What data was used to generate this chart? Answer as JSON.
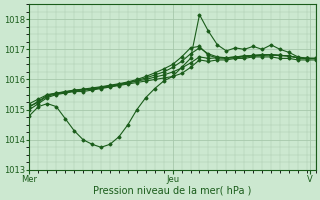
{
  "xlabel": "Pression niveau de la mer( hPa )",
  "ylim": [
    1013,
    1018.5
  ],
  "yticks": [
    1013,
    1014,
    1015,
    1016,
    1017,
    1018
  ],
  "background_color": "#cce8d0",
  "grid_color": "#a8c8ac",
  "line_color": "#1a5c1a",
  "day_labels": [
    "Mer",
    "Jeu",
    "V"
  ],
  "day_positions": [
    0,
    48,
    94
  ],
  "xlim": [
    0,
    96
  ],
  "lines": [
    {
      "x": [
        0,
        3,
        6,
        9,
        12,
        15,
        18,
        21,
        24,
        27,
        30,
        33,
        36,
        39,
        42,
        45,
        48,
        51,
        54,
        57,
        60,
        63,
        66,
        69,
        72,
        75,
        78,
        81,
        84,
        87,
        90,
        93,
        96
      ],
      "y": [
        1014.8,
        1015.1,
        1015.2,
        1015.1,
        1014.7,
        1014.3,
        1014.0,
        1013.85,
        1013.75,
        1013.85,
        1014.1,
        1014.5,
        1015.0,
        1015.4,
        1015.7,
        1015.95,
        1016.1,
        1016.4,
        1016.7,
        1018.15,
        1017.6,
        1017.15,
        1016.95,
        1017.05,
        1017.0,
        1017.1,
        1017.0,
        1017.15,
        1017.0,
        1016.9,
        1016.75,
        1016.7,
        1016.7
      ]
    },
    {
      "x": [
        0,
        3,
        6,
        9,
        12,
        15,
        18,
        21,
        24,
        27,
        30,
        33,
        36,
        39,
        42,
        45,
        48,
        51,
        54,
        57,
        60,
        63,
        66,
        69,
        72,
        75,
        78,
        81,
        84,
        87,
        90,
        93,
        96
      ],
      "y": [
        1015.0,
        1015.2,
        1015.4,
        1015.5,
        1015.55,
        1015.6,
        1015.6,
        1015.65,
        1015.7,
        1015.75,
        1015.8,
        1015.85,
        1015.9,
        1015.95,
        1016.0,
        1016.05,
        1016.1,
        1016.2,
        1016.4,
        1016.65,
        1016.6,
        1016.65,
        1016.65,
        1016.7,
        1016.7,
        1016.75,
        1016.75,
        1016.75,
        1016.7,
        1016.7,
        1016.65,
        1016.65,
        1016.65
      ]
    },
    {
      "x": [
        0,
        3,
        6,
        9,
        12,
        15,
        18,
        21,
        24,
        27,
        30,
        33,
        36,
        39,
        42,
        45,
        48,
        51,
        54,
        57,
        60,
        63,
        66,
        69,
        72,
        75,
        78,
        81,
        84,
        87,
        90,
        93,
        96
      ],
      "y": [
        1015.1,
        1015.25,
        1015.45,
        1015.52,
        1015.57,
        1015.62,
        1015.65,
        1015.68,
        1015.72,
        1015.77,
        1015.82,
        1015.88,
        1015.95,
        1016.0,
        1016.08,
        1016.15,
        1016.25,
        1016.38,
        1016.55,
        1016.75,
        1016.7,
        1016.72,
        1016.72,
        1016.75,
        1016.78,
        1016.8,
        1016.82,
        1016.82,
        1016.8,
        1016.78,
        1016.72,
        1016.7,
        1016.7
      ]
    },
    {
      "x": [
        0,
        3,
        6,
        9,
        12,
        15,
        18,
        21,
        24,
        27,
        30,
        33,
        36,
        39,
        42,
        45,
        48,
        51,
        54,
        57,
        60,
        63,
        66,
        69,
        72,
        75,
        78,
        81,
        84,
        87,
        90,
        93,
        96
      ],
      "y": [
        1015.1,
        1015.28,
        1015.48,
        1015.54,
        1015.59,
        1015.64,
        1015.67,
        1015.7,
        1015.74,
        1015.79,
        1015.84,
        1015.9,
        1015.97,
        1016.05,
        1016.15,
        1016.25,
        1016.4,
        1016.6,
        1016.85,
        1017.05,
        1016.85,
        1016.75,
        1016.72,
        1016.75,
        1016.78,
        1016.8,
        1016.82,
        1016.82,
        1016.8,
        1016.78,
        1016.72,
        1016.7,
        1016.7
      ]
    },
    {
      "x": [
        0,
        3,
        6,
        9,
        12,
        15,
        18,
        21,
        24,
        27,
        30,
        33,
        36,
        39,
        42,
        45,
        48,
        51,
        54,
        57,
        60,
        63,
        66,
        69,
        72,
        75,
        78,
        81,
        84,
        87,
        90,
        93,
        96
      ],
      "y": [
        1015.2,
        1015.35,
        1015.5,
        1015.55,
        1015.6,
        1015.65,
        1015.68,
        1015.72,
        1015.76,
        1015.81,
        1015.86,
        1015.92,
        1016.0,
        1016.1,
        1016.22,
        1016.35,
        1016.5,
        1016.75,
        1017.05,
        1017.1,
        1016.8,
        1016.72,
        1016.7,
        1016.72,
        1016.75,
        1016.78,
        1016.8,
        1016.82,
        1016.8,
        1016.78,
        1016.72,
        1016.7,
        1016.7
      ]
    }
  ]
}
